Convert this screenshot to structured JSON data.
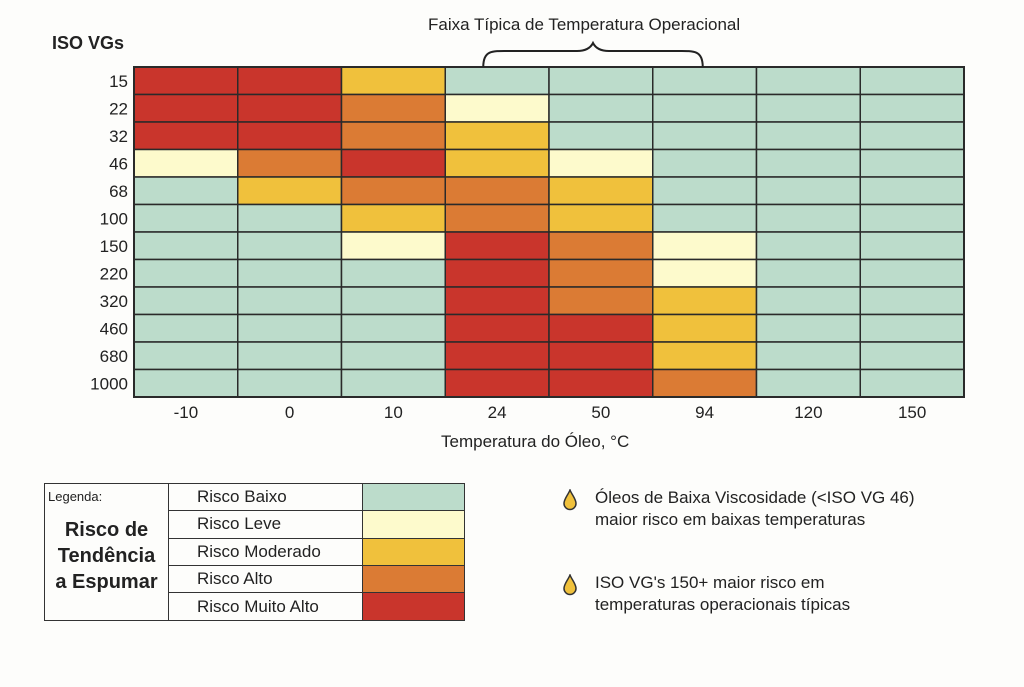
{
  "chart_data": {
    "type": "heatmap",
    "title": "Faixa Típica de Temperatura Operacional",
    "ylabel": "ISO VGs",
    "xlabel": "Temperatura do Óleo, °C",
    "x_categories": [
      "-10",
      "0",
      "10",
      "24",
      "50",
      "94",
      "120",
      "150"
    ],
    "y_categories": [
      "15",
      "22",
      "32",
      "46",
      "68",
      "100",
      "150",
      "220",
      "320",
      "460",
      "680",
      "1000"
    ],
    "typical_range_columns": [
      "24",
      "50",
      "94"
    ],
    "risk_levels": [
      {
        "level": 0,
        "name": "Risco Baixo",
        "color": "#bcdccb"
      },
      {
        "level": 1,
        "name": "Risco Leve",
        "color": "#fdfacc"
      },
      {
        "level": 2,
        "name": "Risco Moderado",
        "color": "#f0c13c"
      },
      {
        "level": 3,
        "name": "Risco Alto",
        "color": "#db7b34"
      },
      {
        "level": 4,
        "name": "Risco Muito Alto",
        "color": "#c9352c"
      }
    ],
    "values": [
      [
        4,
        4,
        2,
        0,
        0,
        0,
        0,
        0
      ],
      [
        4,
        4,
        3,
        1,
        0,
        0,
        0,
        0
      ],
      [
        4,
        4,
        3,
        2,
        0,
        0,
        0,
        0
      ],
      [
        1,
        3,
        4,
        2,
        1,
        0,
        0,
        0
      ],
      [
        0,
        2,
        3,
        3,
        2,
        0,
        0,
        0
      ],
      [
        0,
        0,
        2,
        3,
        2,
        0,
        0,
        0
      ],
      [
        0,
        0,
        1,
        4,
        3,
        1,
        0,
        0
      ],
      [
        0,
        0,
        0,
        4,
        3,
        1,
        0,
        0
      ],
      [
        0,
        0,
        0,
        4,
        3,
        2,
        0,
        0
      ],
      [
        0,
        0,
        0,
        4,
        4,
        2,
        0,
        0
      ],
      [
        0,
        0,
        0,
        4,
        4,
        2,
        0,
        0
      ],
      [
        0,
        0,
        0,
        4,
        4,
        3,
        0,
        0
      ]
    ]
  },
  "legend": {
    "caption": "Legenda:",
    "title_lines": [
      "Risco de",
      "Tendência",
      "a Espumar"
    ]
  },
  "notes": [
    {
      "icon": "oil-drop-icon",
      "lines": [
        "Óleos de Baixa Viscosidade (<ISO VG 46)",
        "maior risco em baixas temperaturas"
      ]
    },
    {
      "icon": "oil-drop-icon",
      "lines": [
        "ISO VG's 150+ maior risco em",
        "temperaturas operacionais típicas"
      ]
    }
  ],
  "colors": {
    "grid_line": "#2a2a2a",
    "drop_fill": "#f0c13c"
  }
}
